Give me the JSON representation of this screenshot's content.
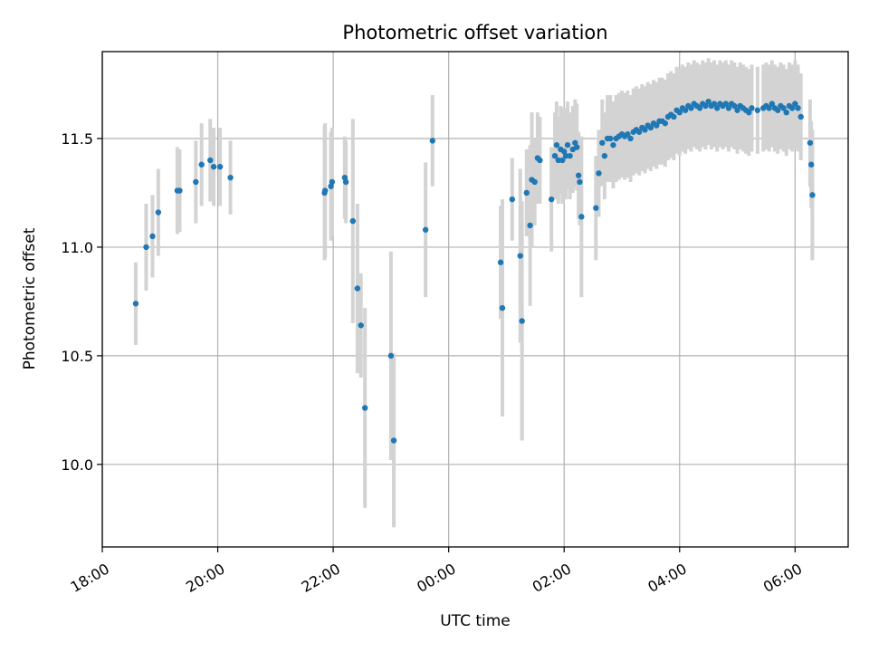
{
  "chart_data": {
    "type": "scatter",
    "title": "Photometric offset variation",
    "xlabel": "UTC time",
    "ylabel": "Photometric offset",
    "x_unit": "hours since 18:00 UTC",
    "xlim": [
      0,
      12.92
    ],
    "ylim": [
      9.62,
      11.9
    ],
    "x_ticks": [
      {
        "value": 0,
        "label": "18:00"
      },
      {
        "value": 2,
        "label": "20:00"
      },
      {
        "value": 4,
        "label": "22:00"
      },
      {
        "value": 6,
        "label": "00:00"
      },
      {
        "value": 8,
        "label": "02:00"
      },
      {
        "value": 10,
        "label": "04:00"
      },
      {
        "value": 12,
        "label": "06:00"
      }
    ],
    "y_ticks": [
      {
        "value": 10.0,
        "label": "10.0"
      },
      {
        "value": 10.5,
        "label": "10.5"
      },
      {
        "value": 11.0,
        "label": "11.0"
      },
      {
        "value": 11.5,
        "label": "11.5"
      }
    ],
    "grid": true,
    "colors": {
      "points": "#1f77b4",
      "errorbars": "#d3d3d3"
    },
    "series": [
      {
        "points": [
          [
            0.58,
            10.74,
            0.19
          ],
          [
            0.76,
            11.0,
            0.2
          ],
          [
            0.87,
            11.05,
            0.19
          ],
          [
            0.97,
            11.16,
            0.2
          ],
          [
            1.3,
            11.26,
            0.2
          ],
          [
            1.34,
            11.26,
            0.19
          ],
          [
            1.62,
            11.3,
            0.19
          ],
          [
            1.72,
            11.38,
            0.19
          ],
          [
            1.87,
            11.4,
            0.19
          ],
          [
            1.93,
            11.37,
            0.18
          ],
          [
            2.04,
            11.37,
            0.18
          ],
          [
            2.22,
            11.32,
            0.17
          ],
          [
            3.85,
            11.25,
            0.31
          ],
          [
            3.86,
            11.26,
            0.31
          ],
          [
            3.96,
            11.28,
            0.25
          ],
          [
            3.98,
            11.3,
            0.25
          ],
          [
            4.2,
            11.32,
            0.19
          ],
          [
            4.22,
            11.3,
            0.19
          ],
          [
            4.34,
            11.12,
            0.47
          ],
          [
            4.42,
            10.81,
            0.39
          ],
          [
            4.48,
            10.64,
            0.24
          ],
          [
            4.55,
            10.26,
            0.46
          ],
          [
            5.0,
            10.5,
            0.48
          ],
          [
            5.05,
            10.11,
            0.4
          ],
          [
            5.6,
            11.08,
            0.31
          ],
          [
            5.72,
            11.49,
            0.21
          ],
          [
            6.9,
            10.93,
            0.26
          ],
          [
            6.93,
            10.72,
            0.5
          ],
          [
            7.1,
            11.22,
            0.19
          ],
          [
            7.24,
            10.96,
            0.4
          ],
          [
            7.27,
            10.66,
            0.55
          ],
          [
            7.35,
            11.25,
            0.2
          ],
          [
            7.41,
            11.1,
            0.37
          ],
          [
            7.44,
            11.31,
            0.31
          ],
          [
            7.49,
            11.3,
            0.2
          ],
          [
            7.54,
            11.41,
            0.21
          ],
          [
            7.58,
            11.4,
            0.2
          ],
          [
            7.78,
            11.22,
            0.24
          ],
          [
            7.84,
            11.42,
            0.2
          ],
          [
            7.87,
            11.47,
            0.2
          ],
          [
            7.9,
            11.4,
            0.2
          ],
          [
            7.94,
            11.45,
            0.2
          ],
          [
            7.97,
            11.4,
            0.2
          ],
          [
            8.0,
            11.44,
            0.2
          ],
          [
            8.03,
            11.42,
            0.2
          ],
          [
            8.06,
            11.47,
            0.2
          ],
          [
            8.1,
            11.42,
            0.2
          ],
          [
            8.15,
            11.45,
            0.2
          ],
          [
            8.19,
            11.48,
            0.2
          ],
          [
            8.22,
            11.46,
            0.2
          ],
          [
            8.25,
            11.33,
            0.2
          ],
          [
            8.27,
            11.3,
            0.2
          ],
          [
            8.3,
            11.14,
            0.37
          ],
          [
            8.55,
            11.18,
            0.24
          ],
          [
            8.6,
            11.34,
            0.2
          ],
          [
            8.66,
            11.48,
            0.2
          ],
          [
            8.7,
            11.42,
            0.2
          ],
          [
            8.75,
            11.5,
            0.2
          ],
          [
            8.8,
            11.5,
            0.2
          ],
          [
            8.85,
            11.47,
            0.2
          ],
          [
            8.9,
            11.5,
            0.2
          ],
          [
            8.95,
            11.51,
            0.2
          ],
          [
            9.0,
            11.52,
            0.2
          ],
          [
            9.05,
            11.51,
            0.2
          ],
          [
            9.1,
            11.52,
            0.2
          ],
          [
            9.15,
            11.5,
            0.2
          ],
          [
            9.2,
            11.53,
            0.2
          ],
          [
            9.25,
            11.54,
            0.2
          ],
          [
            9.3,
            11.53,
            0.2
          ],
          [
            9.35,
            11.55,
            0.2
          ],
          [
            9.4,
            11.54,
            0.2
          ],
          [
            9.45,
            11.56,
            0.2
          ],
          [
            9.5,
            11.55,
            0.2
          ],
          [
            9.55,
            11.57,
            0.2
          ],
          [
            9.6,
            11.56,
            0.2
          ],
          [
            9.65,
            11.58,
            0.2
          ],
          [
            9.7,
            11.58,
            0.2
          ],
          [
            9.75,
            11.57,
            0.2
          ],
          [
            9.8,
            11.6,
            0.2
          ],
          [
            9.85,
            11.61,
            0.2
          ],
          [
            9.9,
            11.6,
            0.2
          ],
          [
            9.95,
            11.63,
            0.2
          ],
          [
            10.0,
            11.62,
            0.2
          ],
          [
            10.05,
            11.64,
            0.2
          ],
          [
            10.1,
            11.63,
            0.2
          ],
          [
            10.15,
            11.65,
            0.2
          ],
          [
            10.2,
            11.64,
            0.2
          ],
          [
            10.25,
            11.66,
            0.2
          ],
          [
            10.3,
            11.65,
            0.2
          ],
          [
            10.35,
            11.64,
            0.2
          ],
          [
            10.4,
            11.66,
            0.2
          ],
          [
            10.45,
            11.65,
            0.2
          ],
          [
            10.5,
            11.67,
            0.2
          ],
          [
            10.55,
            11.65,
            0.2
          ],
          [
            10.6,
            11.66,
            0.2
          ],
          [
            10.65,
            11.64,
            0.2
          ],
          [
            10.7,
            11.66,
            0.2
          ],
          [
            10.75,
            11.65,
            0.2
          ],
          [
            10.8,
            11.66,
            0.2
          ],
          [
            10.85,
            11.64,
            0.2
          ],
          [
            10.9,
            11.66,
            0.2
          ],
          [
            10.95,
            11.65,
            0.2
          ],
          [
            11.0,
            11.63,
            0.2
          ],
          [
            11.05,
            11.65,
            0.2
          ],
          [
            11.1,
            11.64,
            0.2
          ],
          [
            11.15,
            11.63,
            0.2
          ],
          [
            11.2,
            11.62,
            0.2
          ],
          [
            11.25,
            11.64,
            0.2
          ],
          [
            11.35,
            11.63,
            0.2
          ],
          [
            11.45,
            11.64,
            0.2
          ],
          [
            11.5,
            11.65,
            0.2
          ],
          [
            11.55,
            11.64,
            0.2
          ],
          [
            11.6,
            11.66,
            0.2
          ],
          [
            11.65,
            11.64,
            0.2
          ],
          [
            11.7,
            11.63,
            0.2
          ],
          [
            11.75,
            11.65,
            0.2
          ],
          [
            11.8,
            11.64,
            0.2
          ],
          [
            11.85,
            11.62,
            0.2
          ],
          [
            11.9,
            11.65,
            0.2
          ],
          [
            11.95,
            11.64,
            0.2
          ],
          [
            12.0,
            11.66,
            0.2
          ],
          [
            12.05,
            11.64,
            0.2
          ],
          [
            12.1,
            11.6,
            0.2
          ],
          [
            12.26,
            11.48,
            0.2
          ],
          [
            12.28,
            11.38,
            0.2
          ],
          [
            12.3,
            11.24,
            0.3
          ]
        ]
      }
    ]
  }
}
